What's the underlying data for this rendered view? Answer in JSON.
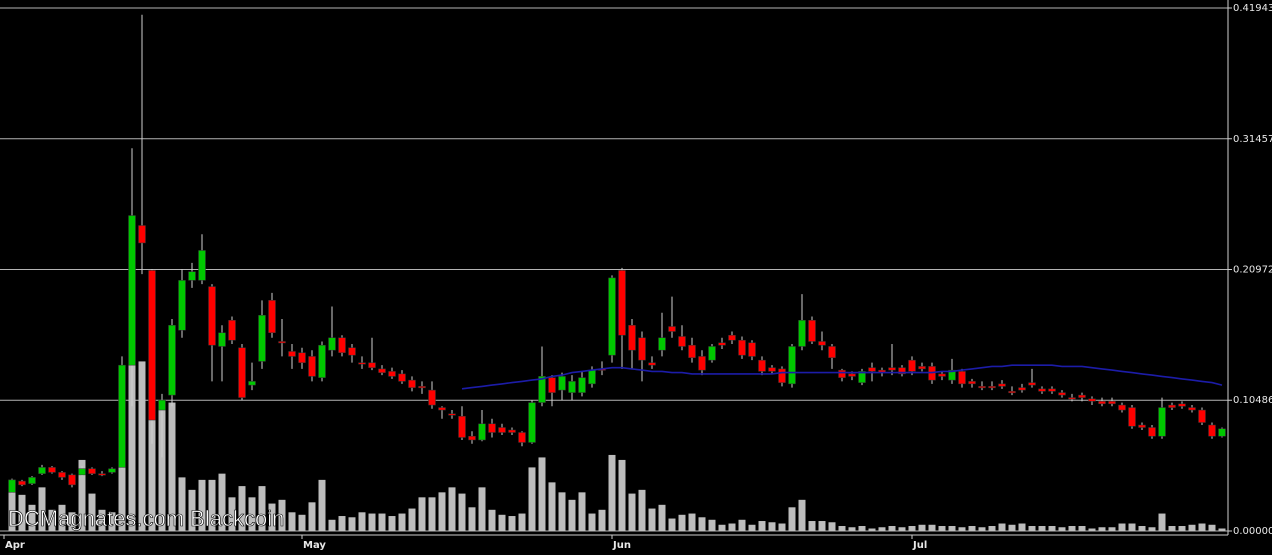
{
  "chart_data": {
    "type": "candlestick",
    "watermark": "DCMagnates.com Blackcoin",
    "up_color": "#00c800",
    "down_color": "#ff0000",
    "wick_color": "#d0d0d0",
    "volume_color": "#bdbdbd",
    "ma_color": "#1c1ca8",
    "grid": true,
    "ylim": [
      0,
      0.41943
    ],
    "yticks": [
      {
        "value": 0,
        "label": "0.00000"
      },
      0.10486,
      0.20972,
      0.31457,
      0.41943
    ],
    "xlim": [
      -1.2,
      121.6
    ],
    "xticks": [
      {
        "value": -0.8,
        "label": "Apr"
      },
      {
        "value": 29,
        "label": "May"
      },
      {
        "value": 60,
        "label": "Jun"
      },
      {
        "value": 90,
        "label": "Jul"
      }
    ],
    "open": [
      0.031,
      0.04,
      0.038,
      0.046,
      0.051,
      0.047,
      0.045,
      0.045,
      0.05,
      0.046,
      0.047,
      0.051,
      0.133,
      0.245,
      0.209,
      0.097,
      0.109,
      0.161,
      0.201,
      0.201,
      0.196,
      0.148,
      0.169,
      0.147,
      0.117,
      0.136,
      0.185,
      0.152,
      0.144,
      0.143,
      0.14,
      0.123,
      0.145,
      0.155,
      0.147,
      0.135,
      0.135,
      0.13,
      0.128,
      0.126,
      0.121,
      0.116,
      0.113,
      0.099,
      0.094,
      0.092,
      0.076,
      0.073,
      0.086,
      0.083,
      0.081,
      0.079,
      0.071,
      0.103,
      0.123,
      0.113,
      0.111,
      0.111,
      0.118,
      0.13,
      0.141,
      0.209,
      0.165,
      0.155,
      0.135,
      0.145,
      0.164,
      0.156,
      0.149,
      0.14,
      0.137,
      0.151,
      0.157,
      0.153,
      0.151,
      0.137,
      0.131,
      0.13,
      0.118,
      0.148,
      0.169,
      0.152,
      0.148,
      0.129,
      0.126,
      0.119,
      0.131,
      0.129,
      0.131,
      0.131,
      0.137,
      0.132,
      0.132,
      0.126,
      0.121,
      0.128,
      0.12,
      0.116,
      0.116,
      0.118,
      0.112,
      0.115,
      0.119,
      0.114,
      0.114,
      0.111,
      0.107,
      0.109,
      0.106,
      0.104,
      0.104,
      0.101,
      0.099,
      0.085,
      0.083,
      0.076,
      0.101,
      0.102,
      0.099,
      0.097,
      0.085,
      0.076
    ],
    "high": [
      0.042,
      0.041,
      0.044,
      0.053,
      0.052,
      0.048,
      0.046,
      0.052,
      0.051,
      0.048,
      0.051,
      0.14,
      0.307,
      0.414,
      0.21,
      0.11,
      0.17,
      0.21,
      0.215,
      0.238,
      0.198,
      0.165,
      0.172,
      0.15,
      0.135,
      0.185,
      0.191,
      0.17,
      0.15,
      0.147,
      0.145,
      0.152,
      0.18,
      0.157,
      0.15,
      0.14,
      0.155,
      0.133,
      0.131,
      0.129,
      0.124,
      0.12,
      0.12,
      0.1,
      0.097,
      0.1,
      0.08,
      0.097,
      0.09,
      0.086,
      0.083,
      0.08,
      0.105,
      0.148,
      0.125,
      0.127,
      0.125,
      0.128,
      0.132,
      0.136,
      0.205,
      0.211,
      0.17,
      0.16,
      0.14,
      0.175,
      0.188,
      0.165,
      0.155,
      0.145,
      0.15,
      0.155,
      0.16,
      0.156,
      0.153,
      0.14,
      0.133,
      0.132,
      0.15,
      0.19,
      0.172,
      0.16,
      0.15,
      0.13,
      0.128,
      0.13,
      0.135,
      0.131,
      0.15,
      0.133,
      0.14,
      0.135,
      0.135,
      0.128,
      0.138,
      0.13,
      0.122,
      0.12,
      0.12,
      0.121,
      0.116,
      0.118,
      0.13,
      0.116,
      0.116,
      0.113,
      0.11,
      0.111,
      0.108,
      0.107,
      0.107,
      0.103,
      0.101,
      0.087,
      0.085,
      0.107,
      0.103,
      0.104,
      0.101,
      0.099,
      0.087,
      0.083
    ],
    "low": [
      0.03,
      0.036,
      0.037,
      0.045,
      0.046,
      0.041,
      0.035,
      0.044,
      0.045,
      0.044,
      0.046,
      0.05,
      0.1,
      0.206,
      0.07,
      0.059,
      0.1,
      0.155,
      0.195,
      0.198,
      0.12,
      0.12,
      0.15,
      0.105,
      0.113,
      0.13,
      0.155,
      0.14,
      0.13,
      0.13,
      0.12,
      0.12,
      0.14,
      0.14,
      0.135,
      0.13,
      0.129,
      0.125,
      0.122,
      0.118,
      0.112,
      0.11,
      0.098,
      0.09,
      0.09,
      0.073,
      0.07,
      0.072,
      0.075,
      0.077,
      0.077,
      0.068,
      0.07,
      0.1,
      0.1,
      0.105,
      0.105,
      0.108,
      0.115,
      0.125,
      0.135,
      0.13,
      0.13,
      0.12,
      0.13,
      0.14,
      0.155,
      0.145,
      0.135,
      0.125,
      0.135,
      0.146,
      0.15,
      0.138,
      0.137,
      0.125,
      0.126,
      0.116,
      0.115,
      0.145,
      0.15,
      0.145,
      0.13,
      0.12,
      0.121,
      0.117,
      0.12,
      0.124,
      0.125,
      0.124,
      0.125,
      0.128,
      0.118,
      0.121,
      0.118,
      0.115,
      0.115,
      0.113,
      0.113,
      0.114,
      0.109,
      0.111,
      0.115,
      0.11,
      0.11,
      0.107,
      0.104,
      0.104,
      0.101,
      0.1,
      0.1,
      0.095,
      0.082,
      0.081,
      0.074,
      0.074,
      0.097,
      0.098,
      0.095,
      0.085,
      0.074,
      0.075
    ],
    "close": [
      0.041,
      0.037,
      0.043,
      0.051,
      0.047,
      0.043,
      0.037,
      0.05,
      0.046,
      0.045,
      0.05,
      0.133,
      0.253,
      0.231,
      0.089,
      0.105,
      0.165,
      0.201,
      0.208,
      0.225,
      0.149,
      0.159,
      0.153,
      0.107,
      0.12,
      0.173,
      0.159,
      0.151,
      0.14,
      0.135,
      0.124,
      0.149,
      0.155,
      0.143,
      0.141,
      0.134,
      0.131,
      0.127,
      0.124,
      0.12,
      0.115,
      0.115,
      0.101,
      0.097,
      0.093,
      0.075,
      0.073,
      0.086,
      0.079,
      0.079,
      0.079,
      0.071,
      0.103,
      0.124,
      0.111,
      0.124,
      0.12,
      0.123,
      0.129,
      0.129,
      0.203,
      0.157,
      0.145,
      0.137,
      0.133,
      0.155,
      0.16,
      0.148,
      0.139,
      0.129,
      0.148,
      0.149,
      0.153,
      0.141,
      0.14,
      0.128,
      0.128,
      0.119,
      0.148,
      0.169,
      0.152,
      0.149,
      0.139,
      0.123,
      0.124,
      0.128,
      0.128,
      0.127,
      0.129,
      0.126,
      0.128,
      0.13,
      0.121,
      0.124,
      0.129,
      0.118,
      0.118,
      0.115,
      0.115,
      0.116,
      0.111,
      0.113,
      0.117,
      0.112,
      0.112,
      0.109,
      0.106,
      0.107,
      0.104,
      0.102,
      0.102,
      0.097,
      0.084,
      0.083,
      0.076,
      0.099,
      0.099,
      0.1,
      0.097,
      0.087,
      0.076,
      0.082
    ],
    "volume": [
      0.041,
      0.029,
      0.021,
      0.035,
      0.017,
      0.021,
      0.015,
      0.057,
      0.03,
      0.017,
      0.015,
      0.073,
      0.189,
      0.136,
      0.089,
      0.105,
      0.103,
      0.043,
      0.033,
      0.041,
      0.041,
      0.046,
      0.027,
      0.036,
      0.027,
      0.036,
      0.022,
      0.025,
      0.015,
      0.013,
      0.023,
      0.041,
      0.009,
      0.012,
      0.011,
      0.015,
      0.014,
      0.014,
      0.012,
      0.014,
      0.018,
      0.027,
      0.027,
      0.031,
      0.035,
      0.03,
      0.019,
      0.035,
      0.017,
      0.013,
      0.012,
      0.014,
      0.051,
      0.059,
      0.039,
      0.031,
      0.025,
      0.031,
      0.014,
      0.017,
      0.061,
      0.057,
      0.03,
      0.033,
      0.018,
      0.021,
      0.01,
      0.013,
      0.014,
      0.011,
      0.009,
      0.005,
      0.006,
      0.009,
      0.005,
      0.008,
      0.007,
      0.006,
      0.019,
      0.025,
      0.008,
      0.008,
      0.007,
      0.004,
      0.003,
      0.004,
      0.002,
      0.003,
      0.004,
      0.003,
      0.004,
      0.005,
      0.005,
      0.004,
      0.004,
      0.003,
      0.004,
      0.003,
      0.004,
      0.006,
      0.005,
      0.006,
      0.004,
      0.004,
      0.004,
      0.003,
      0.004,
      0.004,
      0.002,
      0.003,
      0.003,
      0.006,
      0.006,
      0.004,
      0.003,
      0.014,
      0.004,
      0.004,
      0.005,
      0.006,
      0.005,
      0.002
    ],
    "ma": [
      null,
      null,
      null,
      null,
      null,
      null,
      null,
      null,
      null,
      null,
      null,
      null,
      null,
      null,
      null,
      null,
      null,
      null,
      null,
      null,
      null,
      null,
      null,
      null,
      null,
      null,
      null,
      null,
      null,
      null,
      null,
      null,
      null,
      null,
      null,
      null,
      null,
      null,
      null,
      null,
      null,
      null,
      null,
      null,
      null,
      0.114,
      0.115,
      0.116,
      0.117,
      0.118,
      0.119,
      0.12,
      0.121,
      0.122,
      0.124,
      0.125,
      0.127,
      0.128,
      0.129,
      0.13,
      0.131,
      0.131,
      0.13,
      0.129,
      0.128,
      0.128,
      0.127,
      0.127,
      0.126,
      0.126,
      0.126,
      0.126,
      0.126,
      0.126,
      0.126,
      0.126,
      0.126,
      0.127,
      0.127,
      0.127,
      0.127,
      0.127,
      0.127,
      0.127,
      0.127,
      0.127,
      0.127,
      0.127,
      0.127,
      0.127,
      0.127,
      0.127,
      0.127,
      0.128,
      0.128,
      0.129,
      0.13,
      0.131,
      0.132,
      0.132,
      0.133,
      0.133,
      0.133,
      0.133,
      0.133,
      0.132,
      0.132,
      0.132,
      0.131,
      0.13,
      0.129,
      0.128,
      0.127,
      0.126,
      0.125,
      0.124,
      0.123,
      0.122,
      0.121,
      0.12,
      0.119,
      0.117
    ]
  }
}
